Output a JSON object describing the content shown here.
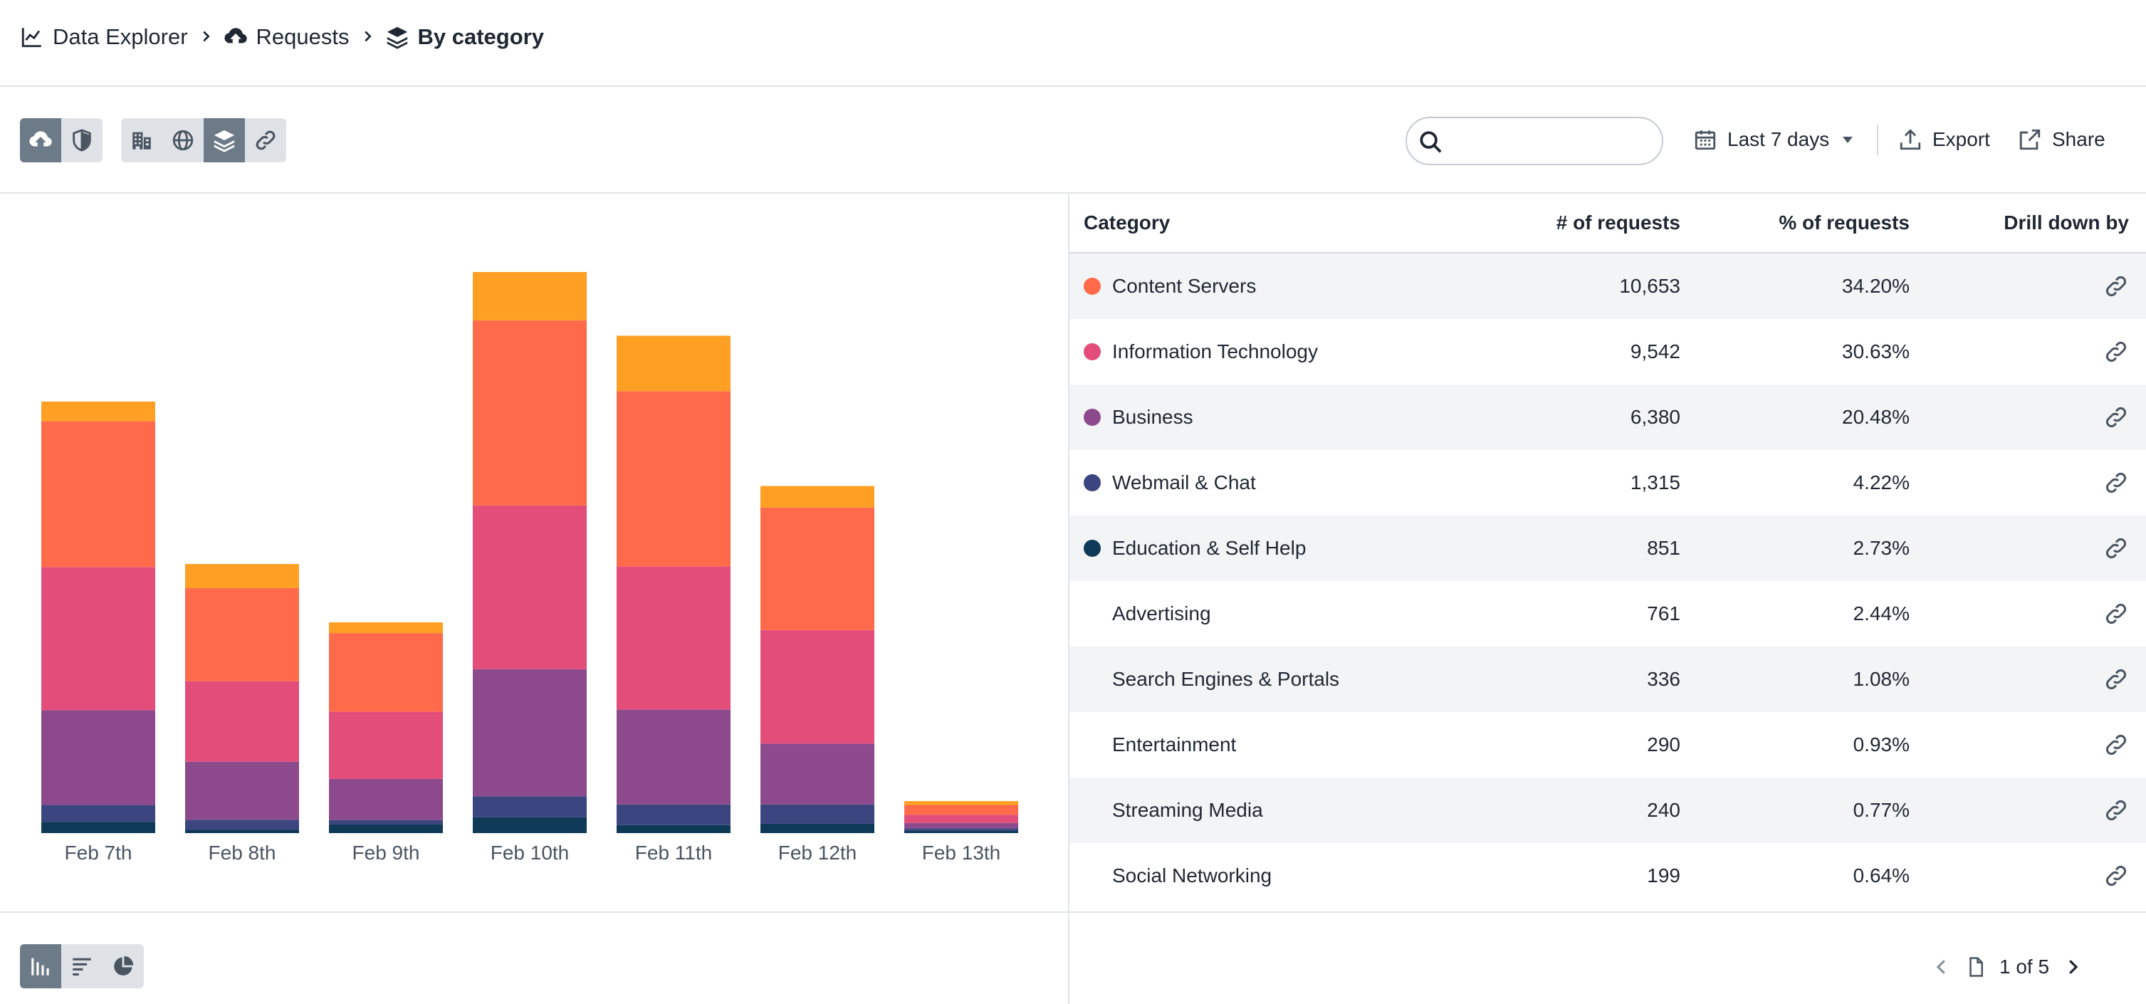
{
  "breadcrumb": {
    "items": [
      {
        "label": "Data Explorer",
        "icon": "chart-icon"
      },
      {
        "label": "Requests",
        "icon": "cloud-upload-icon"
      },
      {
        "label": "By category",
        "icon": "layers-icon"
      }
    ]
  },
  "toolbar": {
    "type_group": [
      {
        "icon": "cloud-upload-icon",
        "active": true
      },
      {
        "icon": "shield-icon",
        "active": false
      }
    ],
    "dimension_group": [
      {
        "icon": "building-icon",
        "active": false
      },
      {
        "icon": "globe-icon",
        "active": false
      },
      {
        "icon": "layers-icon",
        "active": true
      },
      {
        "icon": "link-icon",
        "active": false
      }
    ],
    "search": {
      "value": "",
      "placeholder": ""
    },
    "date_range": "Last 7 days",
    "export_label": "Export",
    "share_label": "Share"
  },
  "colors": {
    "Content Servers": "#ff6b4a",
    "Information Technology": "#e34d7a",
    "Business": "#8c4a8c",
    "Webmail & Chat": "#3b4680",
    "Education & Self Help": "#0f3a57",
    "Other": "#ffa024",
    "accent": "#6d7a88"
  },
  "chart_data": {
    "type": "bar",
    "stacked": true,
    "categories": [
      "Feb 7th",
      "Feb 8th",
      "Feb 9th",
      "Feb 10th",
      "Feb 11th",
      "Feb 12th",
      "Feb 13th"
    ],
    "series": [
      {
        "name": "Education & Self Help",
        "values": [
          62,
          18,
          48,
          88,
          45,
          52,
          12
        ]
      },
      {
        "name": "Webmail & Chat",
        "values": [
          95,
          56,
          25,
          118,
          115,
          108,
          15
        ]
      },
      {
        "name": "Business",
        "values": [
          530,
          325,
          230,
          710,
          530,
          340,
          30
        ]
      },
      {
        "name": "Information Technology",
        "values": [
          800,
          450,
          375,
          915,
          800,
          635,
          45
        ]
      },
      {
        "name": "Content Servers",
        "values": [
          815,
          520,
          440,
          1035,
          980,
          685,
          55
        ]
      },
      {
        "name": "Other",
        "values": [
          110,
          135,
          60,
          270,
          310,
          120,
          22
        ]
      }
    ],
    "grid": false,
    "legend": "none"
  },
  "table": {
    "headers": {
      "category": "Category",
      "requests": "# of requests",
      "percent": "% of requests",
      "drill": "Drill down by"
    },
    "rows": [
      {
        "category": "Content Servers",
        "requests": "10,653",
        "percent": "34.20%",
        "dot": "#ff6b4a"
      },
      {
        "category": "Information Technology",
        "requests": "9,542",
        "percent": "30.63%",
        "dot": "#e34d7a"
      },
      {
        "category": "Business",
        "requests": "6,380",
        "percent": "20.48%",
        "dot": "#8c4a8c"
      },
      {
        "category": "Webmail & Chat",
        "requests": "1,315",
        "percent": "4.22%",
        "dot": "#3b4680"
      },
      {
        "category": "Education & Self Help",
        "requests": "851",
        "percent": "2.73%",
        "dot": "#0f3a57"
      },
      {
        "category": "Advertising",
        "requests": "761",
        "percent": "2.44%",
        "dot": ""
      },
      {
        "category": "Search Engines & Portals",
        "requests": "336",
        "percent": "1.08%",
        "dot": ""
      },
      {
        "category": "Entertainment",
        "requests": "290",
        "percent": "0.93%",
        "dot": ""
      },
      {
        "category": "Streaming Media",
        "requests": "240",
        "percent": "0.77%",
        "dot": ""
      },
      {
        "category": "Social Networking",
        "requests": "199",
        "percent": "0.64%",
        "dot": ""
      }
    ]
  },
  "footer": {
    "view_group": [
      {
        "icon": "bar-chart-icon",
        "active": true
      },
      {
        "icon": "horizontal-bar-icon",
        "active": false
      },
      {
        "icon": "pie-chart-icon",
        "active": false
      }
    ],
    "pagination": "1 of 5"
  }
}
